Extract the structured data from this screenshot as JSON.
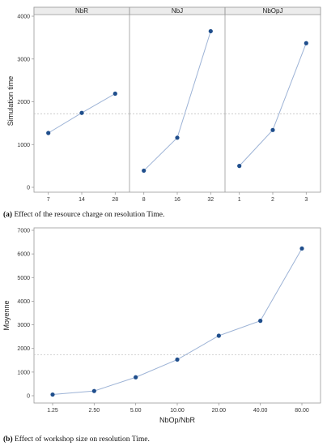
{
  "chart_data": [
    {
      "type": "line",
      "ylabel": "Simulation time",
      "ylim": [
        0,
        4000
      ],
      "yticks": [
        0,
        1000,
        2000,
        3000,
        4000
      ],
      "reference_line": 1720,
      "caption_label": "(a)",
      "caption_text": "Effect of the resource charge on resolution Time.",
      "panels": [
        {
          "title": "NbR",
          "categories": [
            "7",
            "14",
            "28"
          ],
          "values": [
            1270,
            1740,
            2190
          ]
        },
        {
          "title": "NbJ",
          "categories": [
            "8",
            "16",
            "32"
          ],
          "values": [
            390,
            1160,
            3650
          ]
        },
        {
          "title": "NbOpJ",
          "categories": [
            "1",
            "2",
            "3"
          ],
          "values": [
            500,
            1340,
            3370
          ]
        }
      ]
    },
    {
      "type": "line",
      "xlabel": "NbOp/NbR",
      "ylabel": "Moyenne",
      "ylim": [
        0,
        7000
      ],
      "yticks": [
        0,
        1000,
        2000,
        3000,
        4000,
        5000,
        6000,
        7000
      ],
      "reference_line": 1730,
      "caption_label": "(b)",
      "caption_text": "Effect of workshop size on resolution Time.",
      "categories": [
        "1.25",
        "2.50",
        "5.00",
        "10.00",
        "20.00",
        "40.00",
        "80.00"
      ],
      "values": [
        50,
        200,
        780,
        1530,
        2540,
        3170,
        6230
      ]
    }
  ],
  "colors": {
    "point": "#1f4e8c",
    "line": "#9db3d6",
    "reference": "#bbbbbb",
    "axis": "#9a9a9a",
    "header_fill": "#ececec"
  }
}
